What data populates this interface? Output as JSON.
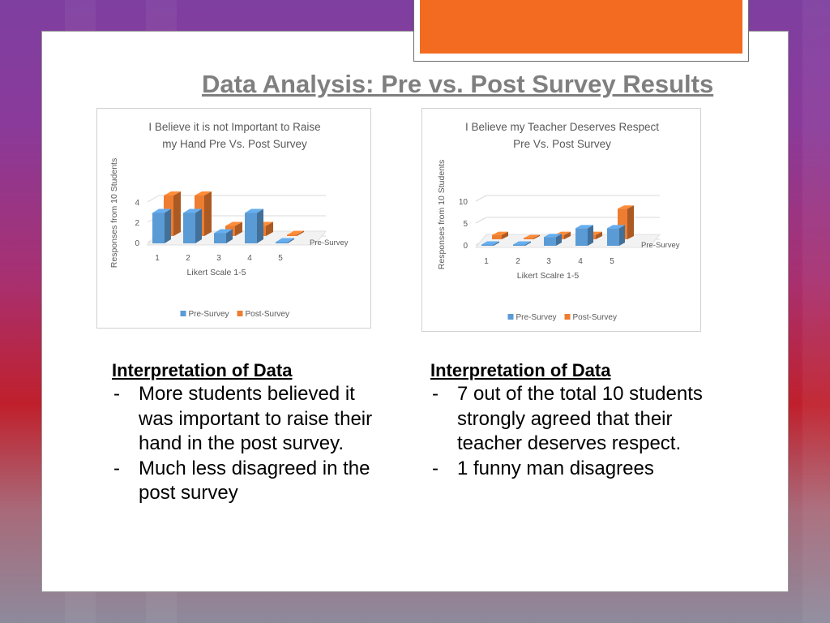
{
  "slide": {
    "title": "Data Analysis: Pre vs. Post Survey Results"
  },
  "colors": {
    "accent_orange": "#f26b21",
    "pre_survey": "#5b9bd5",
    "post_survey": "#ed7d31",
    "title_gray": "#7f7f7f"
  },
  "chart_data": [
    {
      "type": "bar",
      "title": "I Believe it is not Important to Raise my Hand    Pre Vs. Post Survey",
      "title_lines": [
        "I Believe it is not Important to Raise",
        "my Hand    Pre Vs. Post Survey"
      ],
      "xlabel": "Likert Scale 1-5",
      "ylabel": "Responses from 10 Students",
      "categories": [
        "1",
        "2",
        "3",
        "4",
        "5"
      ],
      "yticks": [
        0,
        2,
        4
      ],
      "ylim": [
        0,
        5
      ],
      "series": [
        {
          "name": "Pre-Survey",
          "values": [
            3,
            3,
            1,
            3,
            0
          ]
        },
        {
          "name": "Post-Survey",
          "values": [
            4,
            4,
            1,
            1,
            0
          ]
        }
      ],
      "depth_label": "Pre-Survey",
      "legend": [
        "Pre-Survey",
        "Post-Survey"
      ],
      "legend_position": "bottom",
      "grid": true
    },
    {
      "type": "bar",
      "title": "I Believe my Teacher Deserves Respect Pre Vs. Post Survey",
      "title_lines": [
        "I Believe my Teacher Deserves Respect",
        "Pre Vs. Post Survey"
      ],
      "xlabel": "Likert Scalre 1-5",
      "ylabel": "Responses from 10 Students",
      "categories": [
        "1",
        "2",
        "3",
        "4",
        "5"
      ],
      "yticks": [
        0,
        5,
        10
      ],
      "ylim": [
        0,
        12
      ],
      "series": [
        {
          "name": "Pre-Survey",
          "values": [
            0,
            0,
            2,
            4,
            4
          ]
        },
        {
          "name": "Post-Survey",
          "values": [
            1,
            0,
            1,
            1,
            7
          ]
        }
      ],
      "depth_label": "Pre-Survey",
      "legend": [
        "Pre-Survey",
        "Post-Survey"
      ],
      "legend_position": "bottom",
      "grid": true
    }
  ],
  "interpretations": [
    {
      "heading": "Interpretation of Data",
      "bullets": [
        "More students believed it was important to raise their hand in the post survey.",
        "Much less disagreed in the post survey"
      ]
    },
    {
      "heading": "Interpretation of Data",
      "bullets": [
        "7 out of the total 10 students strongly agreed that their teacher deserves respect.",
        "1 funny man disagrees"
      ]
    }
  ]
}
